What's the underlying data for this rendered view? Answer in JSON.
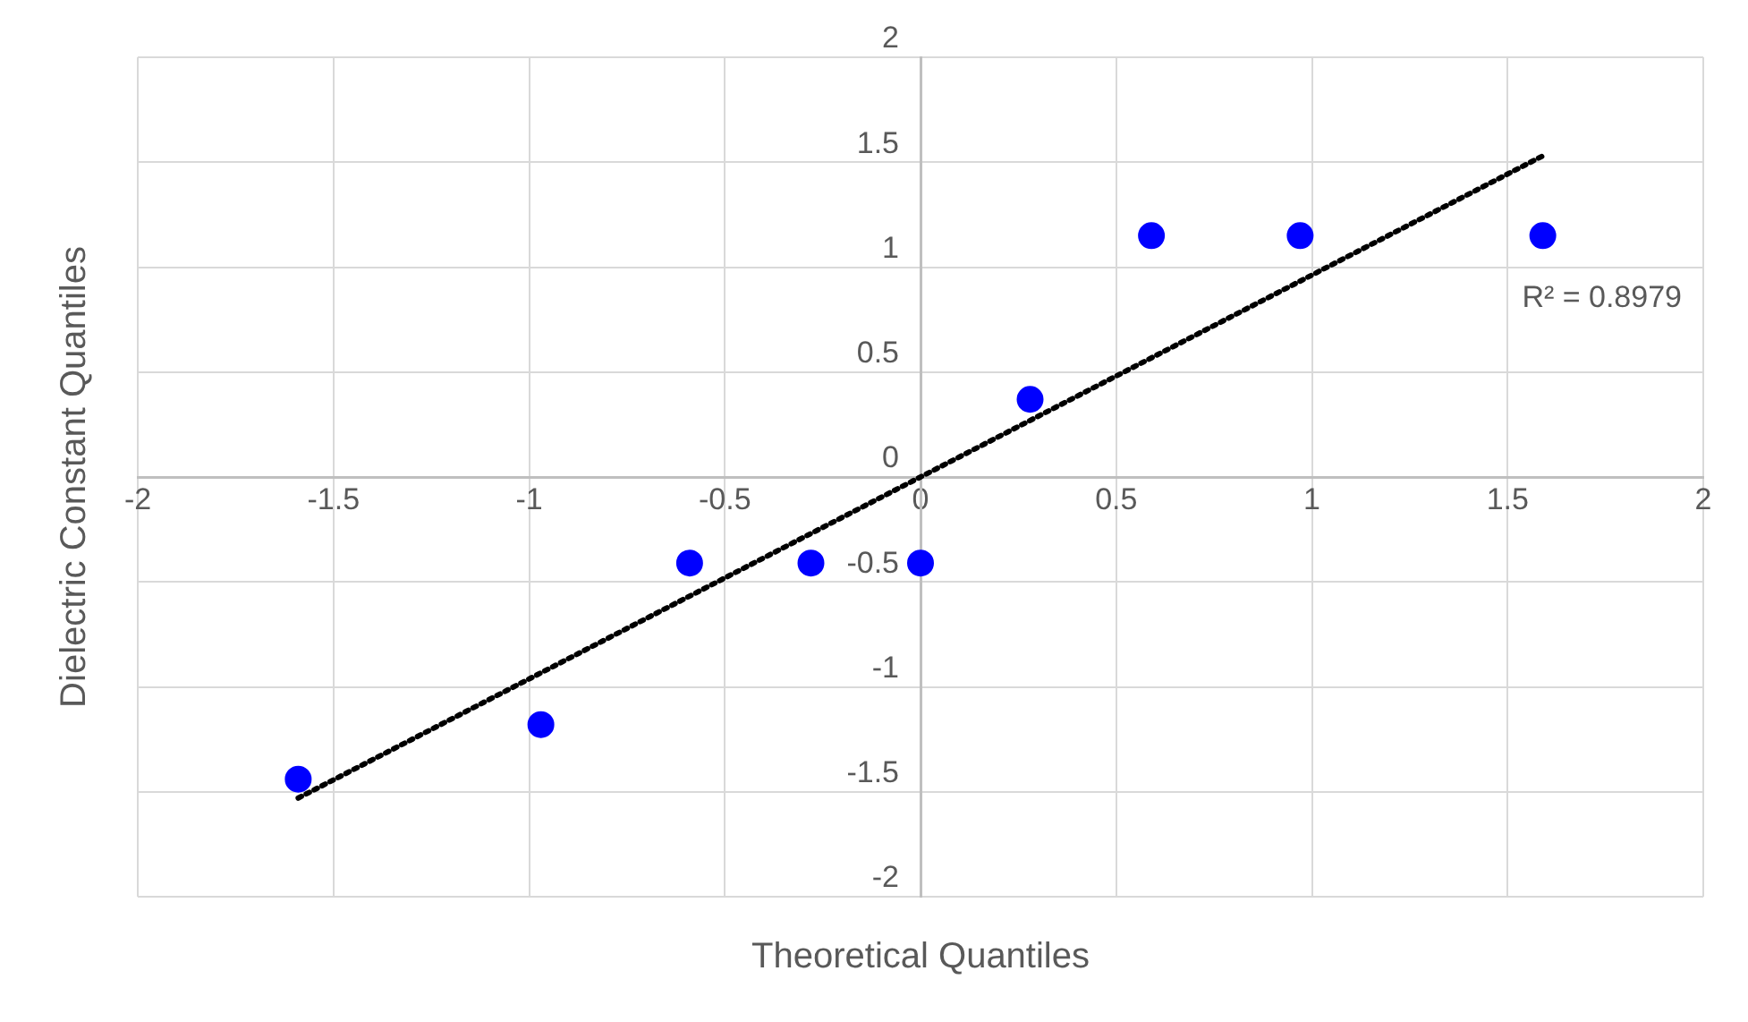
{
  "chart_data": {
    "type": "scatter",
    "xlabel": "Theoretical Quantiles",
    "ylabel": "Dielectric Constant Quantiles",
    "xlim": [
      -2,
      2
    ],
    "ylim": [
      -2,
      2
    ],
    "xticks": [
      -2,
      -1.5,
      -1,
      -0.5,
      0,
      0.5,
      1,
      1.5,
      2
    ],
    "yticks": [
      -2,
      -1.5,
      -1,
      -0.5,
      0,
      0.5,
      1,
      1.5,
      2
    ],
    "grid": true,
    "legend": false,
    "series": [
      {
        "color": "#0000ff",
        "marker": "circle",
        "x": [
          -1.59,
          -0.97,
          -0.59,
          -0.28,
          0,
          0.28,
          0.59,
          0.97,
          1.59
        ],
        "values": [
          -1.44,
          -1.18,
          -0.41,
          -0.41,
          -0.41,
          0.37,
          1.15,
          1.15,
          1.15
        ]
      },
      {
        "type": "line",
        "color": "#000000",
        "line_style": "dotted",
        "marker": "none",
        "x": [
          -1.59,
          1.59
        ],
        "values": [
          -1.53,
          1.53
        ]
      }
    ],
    "annotations": [
      "R² = 0.8979"
    ]
  }
}
